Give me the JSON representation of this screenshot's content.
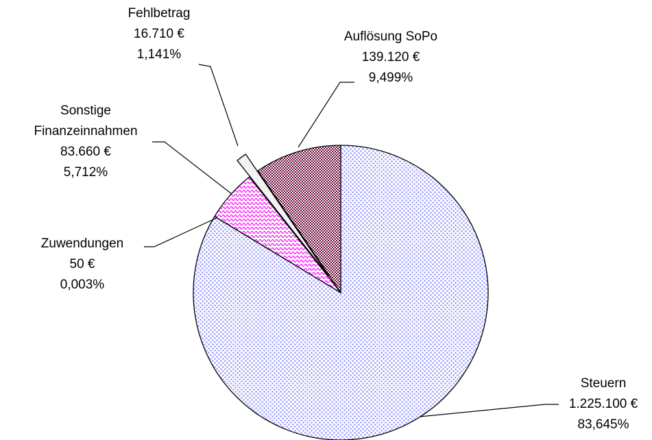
{
  "chart_data": {
    "type": "pie",
    "categories": [
      "Steuern",
      "Zuwendungen",
      "Sonstige Finanzeinnahmen",
      "Fehlbetrag",
      "Auflösung SoPo"
    ],
    "values": [
      1225100,
      50,
      83660,
      16710,
      139120
    ],
    "value_labels": [
      "1.225.100 €",
      "50 €",
      "83.660 €",
      "16.710 €",
      "139.120 €"
    ],
    "percents": [
      83.645,
      0.003,
      5.712,
      1.141,
      9.499
    ],
    "percent_labels": [
      "83,645%",
      "0,003%",
      "5,712%",
      "1,141%",
      "9,499%"
    ],
    "colors": [
      "#9999ff",
      "#cc66cc",
      "#ff00ff",
      "#cccccc",
      "#660033"
    ],
    "exploded": [
      "Fehlbetrag"
    ]
  }
}
